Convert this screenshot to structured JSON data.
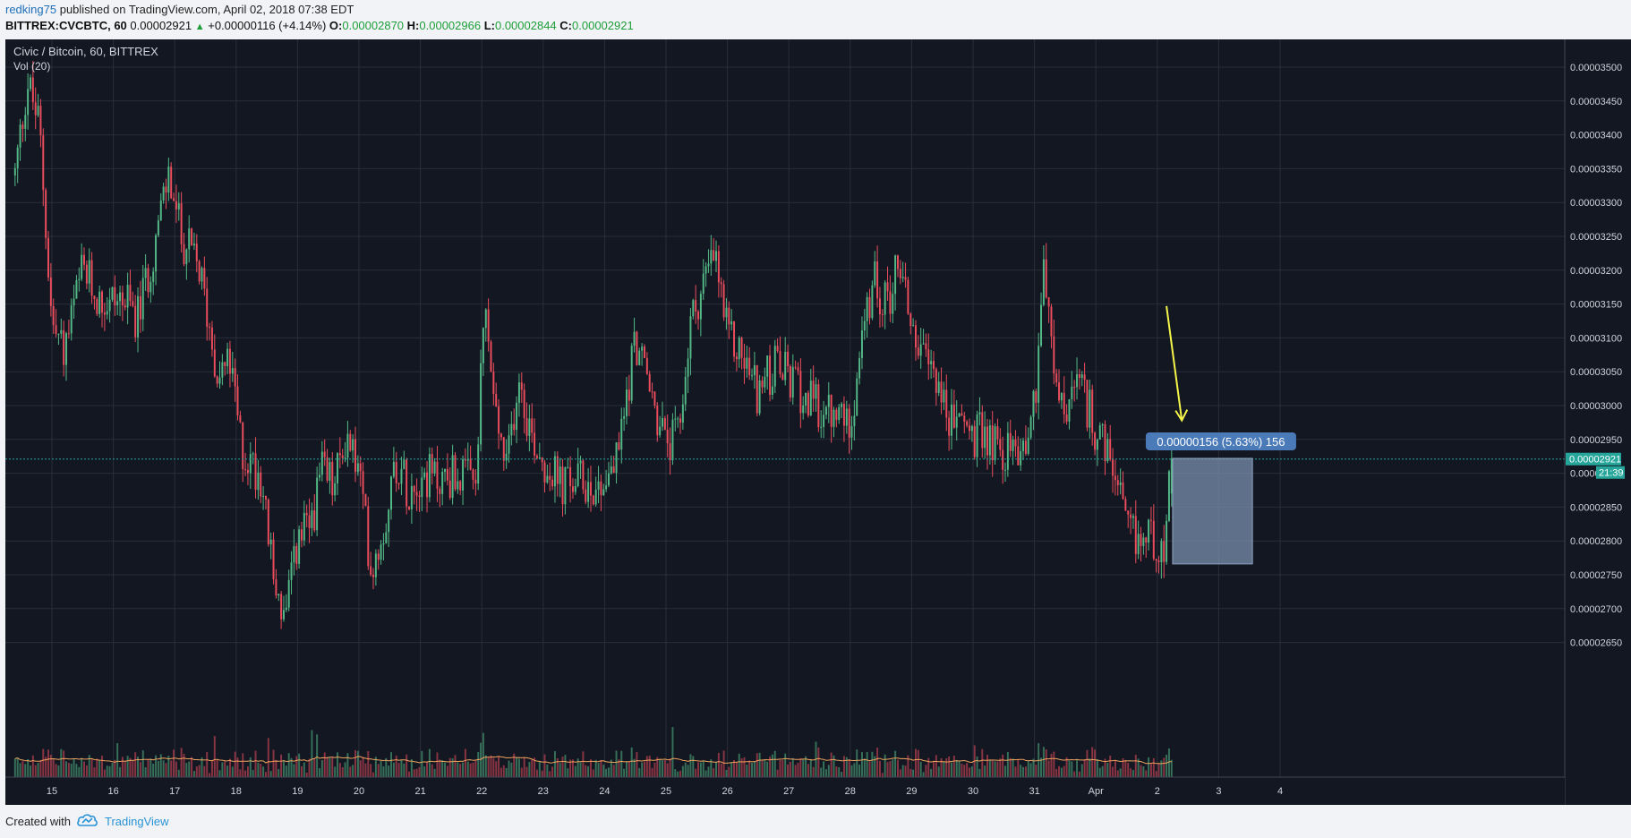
{
  "header": {
    "author": "redking75",
    "published_text": " published on TradingView.com, April 02, 2018 07:38 EDT",
    "symbol": "BITTREX:CVCBTC, 60",
    "last": "0.00002921",
    "change": "+0.00000116 (+4.14%)",
    "o_label": "O:",
    "o_value": "0.00002870",
    "h_label": "H:",
    "h_value": "0.00002966",
    "l_label": "L:",
    "l_value": "0.00002844",
    "c_label": "C:",
    "c_value": "0.00002921"
  },
  "legend": {
    "title": "Civic / Bitcoin, 60, BITTREX",
    "volume": "Vol (20)"
  },
  "footer": {
    "created_with": "Created with",
    "brand": "TradingView"
  },
  "colors": {
    "background": "#131722",
    "grid": "#2a2e39",
    "up": "#53b987",
    "down": "#eb4d5c",
    "volume_ma": "#f0a35c",
    "arrow": "#f5f54a",
    "price_line": "#26a69a",
    "measure_box": "#7a90ad",
    "measure_label_bg": "#4a7ab8"
  },
  "chart_data": {
    "type": "candlestick",
    "title": "Civic / Bitcoin, 60, BITTREX",
    "interval": "60",
    "x_ticks": [
      "15",
      "16",
      "17",
      "18",
      "19",
      "20",
      "21",
      "22",
      "23",
      "24",
      "25",
      "26",
      "27",
      "28",
      "29",
      "30",
      "31",
      "Apr",
      "2",
      "3",
      "4"
    ],
    "y_ticks": [
      "0.00003500",
      "0.00003450",
      "0.00003400",
      "0.00003350",
      "0.00003300",
      "0.00003250",
      "0.00003200",
      "0.00003150",
      "0.00003100",
      "0.00003050",
      "0.00003000",
      "0.00002950",
      "0.00002900",
      "0.00002850",
      "0.00002800",
      "0.00002750",
      "0.00002700",
      "0.00002650"
    ],
    "y_range": [
      2.6e-05,
      3.55e-05
    ],
    "price_path": [
      [
        14.4,
        3.34e-05
      ],
      [
        14.6,
        3.48e-05
      ],
      [
        14.8,
        3.41e-05
      ],
      [
        15.0,
        3.12e-05
      ],
      [
        15.2,
        3.08e-05
      ],
      [
        15.5,
        3.2e-05
      ],
      [
        15.8,
        3.15e-05
      ],
      [
        16.1,
        3.16e-05
      ],
      [
        16.4,
        3.13e-05
      ],
      [
        16.7,
        3.25e-05
      ],
      [
        16.9,
        3.34e-05
      ],
      [
        17.1,
        3.25e-05
      ],
      [
        17.4,
        3.2e-05
      ],
      [
        17.7,
        3.05e-05
      ],
      [
        17.9,
        3.06e-05
      ],
      [
        18.1,
        2.93e-05
      ],
      [
        18.4,
        2.9e-05
      ],
      [
        18.6,
        2.75e-05
      ],
      [
        18.8,
        2.68e-05
      ],
      [
        19.0,
        2.8e-05
      ],
      [
        19.2,
        2.82e-05
      ],
      [
        19.4,
        2.9e-05
      ],
      [
        19.6,
        2.88e-05
      ],
      [
        19.8,
        2.96e-05
      ],
      [
        20.0,
        2.9e-05
      ],
      [
        20.2,
        2.76e-05
      ],
      [
        20.4,
        2.82e-05
      ],
      [
        20.6,
        2.92e-05
      ],
      [
        20.8,
        2.88e-05
      ],
      [
        21.0,
        2.9e-05
      ],
      [
        21.3,
        2.89e-05
      ],
      [
        21.6,
        2.9e-05
      ],
      [
        21.9,
        2.88e-05
      ],
      [
        22.05,
        3.15e-05
      ],
      [
        22.2,
        3e-05
      ],
      [
        22.4,
        2.9e-05
      ],
      [
        22.6,
        3.05e-05
      ],
      [
        22.8,
        2.96e-05
      ],
      [
        23.0,
        2.92e-05
      ],
      [
        23.3,
        2.88e-05
      ],
      [
        23.6,
        2.89e-05
      ],
      [
        23.9,
        2.88e-05
      ],
      [
        24.2,
        2.92e-05
      ],
      [
        24.5,
        3.1e-05
      ],
      [
        24.8,
        3e-05
      ],
      [
        25.0,
        2.94e-05
      ],
      [
        25.2,
        2.95e-05
      ],
      [
        25.4,
        3.12e-05
      ],
      [
        25.6,
        3.18e-05
      ],
      [
        25.8,
        3.22e-05
      ],
      [
        26.0,
        3.1e-05
      ],
      [
        26.2,
        3.08e-05
      ],
      [
        26.5,
        3.02e-05
      ],
      [
        26.8,
        3.06e-05
      ],
      [
        27.1,
        3.03e-05
      ],
      [
        27.4,
        3e-05
      ],
      [
        27.7,
        2.98e-05
      ],
      [
        28.0,
        2.98e-05
      ],
      [
        28.2,
        3.1e-05
      ],
      [
        28.4,
        3.18e-05
      ],
      [
        28.6,
        3.15e-05
      ],
      [
        28.8,
        3.22e-05
      ],
      [
        29.0,
        3.12e-05
      ],
      [
        29.2,
        3.06e-05
      ],
      [
        29.4,
        3.05e-05
      ],
      [
        29.6,
        2.97e-05
      ],
      [
        29.8,
        2.99e-05
      ],
      [
        30.0,
        2.95e-05
      ],
      [
        30.2,
        2.96e-05
      ],
      [
        30.5,
        2.93e-05
      ],
      [
        30.8,
        2.94e-05
      ],
      [
        31.0,
        3e-05
      ],
      [
        31.15,
        3.22e-05
      ],
      [
        31.3,
        3.05e-05
      ],
      [
        31.5,
        2.98e-05
      ],
      [
        31.7,
        3.03e-05
      ],
      [
        31.9,
        2.99e-05
      ],
      [
        32.1,
        2.94e-05
      ],
      [
        32.3,
        2.9e-05
      ],
      [
        32.5,
        2.81e-05
      ],
      [
        32.7,
        2.8e-05
      ],
      [
        32.9,
        2.81e-05
      ],
      [
        33.1,
        2.79e-05
      ],
      [
        33.25,
        2.92e-05
      ]
    ],
    "last_price": "0.00002921",
    "countdown": "21:39",
    "measure_label": "0.00000156 (5.63%) 156",
    "volume_ma_period": 20
  }
}
